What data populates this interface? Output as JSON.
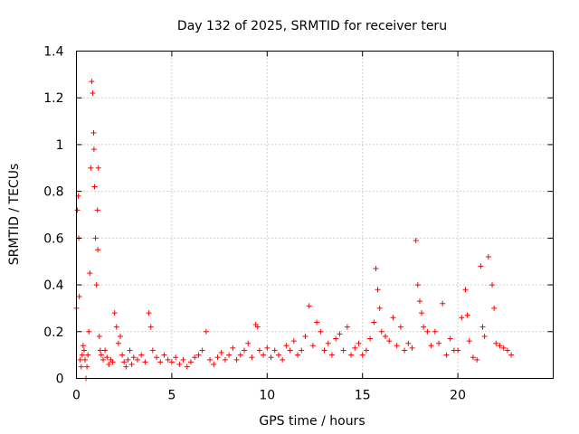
{
  "chart_data": {
    "type": "scatter",
    "title": "Day 132 of 2025, SRMTID for receiver teru",
    "xlabel": "GPS time / hours",
    "ylabel": "SRMTID / TECUs",
    "xlim": [
      0,
      25
    ],
    "ylim": [
      0,
      1.4
    ],
    "xticks": [
      "0",
      "5",
      "10",
      "15",
      "20"
    ],
    "yticks": [
      "0",
      "0.2",
      "0.4",
      "0.6",
      "0.8",
      "1",
      "1.2",
      "1.4"
    ],
    "grid": true,
    "marker": "+",
    "color": "#ff0000",
    "series": [
      {
        "name": "SRMTID",
        "x": [
          0.0,
          0.05,
          0.1,
          0.12,
          0.15,
          0.2,
          0.25,
          0.3,
          0.35,
          0.4,
          0.45,
          0.5,
          0.55,
          0.6,
          0.65,
          0.7,
          0.75,
          0.8,
          0.85,
          0.9,
          0.92,
          0.95,
          1.0,
          1.05,
          1.1,
          1.12,
          1.15,
          1.2,
          1.25,
          1.3,
          1.4,
          1.5,
          1.6,
          1.7,
          1.8,
          1.9,
          2.0,
          2.1,
          2.2,
          2.3,
          2.4,
          2.5,
          2.6,
          2.7,
          2.8,
          2.9,
          3.0,
          3.2,
          3.4,
          3.6,
          3.8,
          3.9,
          4.0,
          4.2,
          4.4,
          4.6,
          4.8,
          5.0,
          5.2,
          5.4,
          5.6,
          5.8,
          6.0,
          6.2,
          6.4,
          6.6,
          6.8,
          7.0,
          7.2,
          7.4,
          7.6,
          7.8,
          8.0,
          8.2,
          8.4,
          8.6,
          8.8,
          9.0,
          9.2,
          9.4,
          9.5,
          9.6,
          9.8,
          10.0,
          10.2,
          10.4,
          10.6,
          10.8,
          11.0,
          11.2,
          11.4,
          11.6,
          11.8,
          12.0,
          12.2,
          12.4,
          12.6,
          12.8,
          13.0,
          13.2,
          13.4,
          13.6,
          13.8,
          14.0,
          14.2,
          14.4,
          14.6,
          14.8,
          15.0,
          15.2,
          15.4,
          15.6,
          15.7,
          15.8,
          15.9,
          16.0,
          16.2,
          16.4,
          16.6,
          16.8,
          17.0,
          17.2,
          17.4,
          17.6,
          17.8,
          17.9,
          18.0,
          18.1,
          18.2,
          18.4,
          18.6,
          18.8,
          19.0,
          19.2,
          19.4,
          19.6,
          19.8,
          20.0,
          20.2,
          20.4,
          20.5,
          20.6,
          20.8,
          21.0,
          21.2,
          21.3,
          21.4,
          21.6,
          21.8,
          21.9,
          22.0,
          22.2,
          22.4,
          22.6,
          22.8
        ],
        "y": [
          0.3,
          0.72,
          0.78,
          0.6,
          0.35,
          0.08,
          0.05,
          0.1,
          0.14,
          0.12,
          0.08,
          0.0,
          0.05,
          0.1,
          0.2,
          0.45,
          0.9,
          1.27,
          1.22,
          1.05,
          0.98,
          0.82,
          0.6,
          0.4,
          0.72,
          0.55,
          0.9,
          0.18,
          0.12,
          0.1,
          0.08,
          0.12,
          0.09,
          0.06,
          0.08,
          0.07,
          0.28,
          0.22,
          0.15,
          0.18,
          0.1,
          0.07,
          0.05,
          0.08,
          0.12,
          0.06,
          0.09,
          0.08,
          0.1,
          0.07,
          0.28,
          0.22,
          0.12,
          0.09,
          0.07,
          0.1,
          0.08,
          0.07,
          0.09,
          0.06,
          0.08,
          0.05,
          0.07,
          0.09,
          0.1,
          0.12,
          0.2,
          0.08,
          0.06,
          0.09,
          0.11,
          0.08,
          0.1,
          0.13,
          0.08,
          0.1,
          0.12,
          0.15,
          0.09,
          0.23,
          0.22,
          0.12,
          0.1,
          0.13,
          0.09,
          0.12,
          0.1,
          0.08,
          0.14,
          0.12,
          0.16,
          0.1,
          0.12,
          0.18,
          0.31,
          0.14,
          0.24,
          0.2,
          0.12,
          0.15,
          0.1,
          0.17,
          0.19,
          0.12,
          0.22,
          0.1,
          0.13,
          0.15,
          0.1,
          0.12,
          0.17,
          0.24,
          0.47,
          0.38,
          0.3,
          0.2,
          0.18,
          0.16,
          0.26,
          0.14,
          0.22,
          0.12,
          0.15,
          0.13,
          0.59,
          0.4,
          0.33,
          0.28,
          0.22,
          0.2,
          0.14,
          0.2,
          0.15,
          0.32,
          0.1,
          0.17,
          0.12,
          0.12,
          0.26,
          0.38,
          0.27,
          0.16,
          0.09,
          0.08,
          0.48,
          0.22,
          0.18,
          0.52,
          0.4,
          0.3,
          0.15,
          0.14,
          0.13,
          0.12,
          0.1
        ]
      }
    ]
  }
}
